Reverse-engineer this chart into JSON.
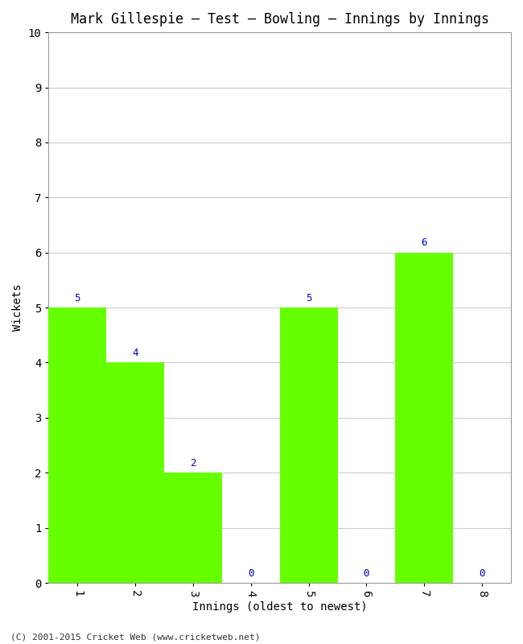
{
  "title": "Mark Gillespie – Test – Bowling – Innings by Innings",
  "xlabel": "Innings (oldest to newest)",
  "ylabel": "Wickets",
  "categories": [
    1,
    2,
    3,
    4,
    5,
    6,
    7,
    8
  ],
  "values": [
    5,
    4,
    2,
    0,
    5,
    0,
    6,
    0
  ],
  "bar_color": "#66ff00",
  "bar_edge_color": "#66ff00",
  "label_color": "#0000cc",
  "ylim": [
    0,
    10
  ],
  "xlim": [
    0.5,
    8.5
  ],
  "yticks": [
    0,
    1,
    2,
    3,
    4,
    5,
    6,
    7,
    8,
    9,
    10
  ],
  "xticks": [
    1,
    2,
    3,
    4,
    5,
    6,
    7,
    8
  ],
  "title_fontsize": 12,
  "axis_label_fontsize": 10,
  "tick_fontsize": 10,
  "annotation_fontsize": 9,
  "footer": "(C) 2001-2015 Cricket Web (www.cricketweb.net)",
  "footer_fontsize": 8,
  "background_color": "#ffffff",
  "grid_color": "#cccccc"
}
